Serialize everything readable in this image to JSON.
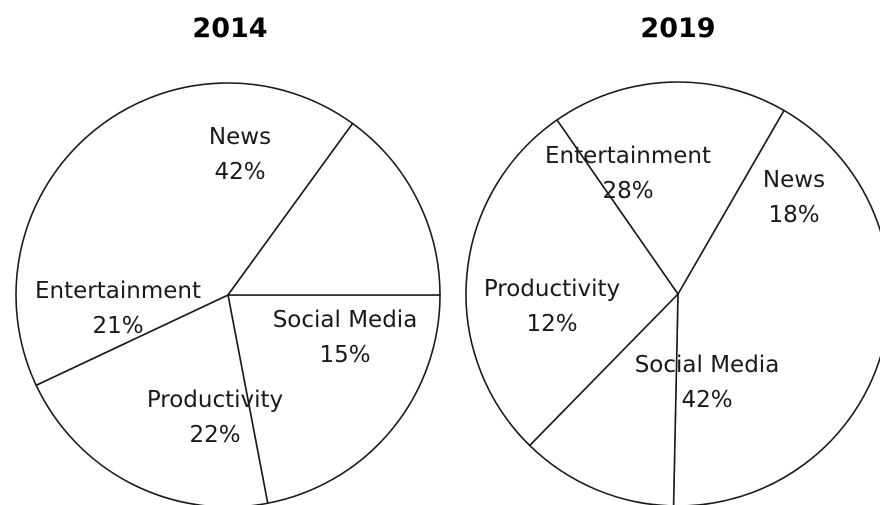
{
  "chart_data": [
    {
      "type": "pie",
      "title": "2014",
      "slices": [
        {
          "label": "Social Media",
          "value": 15,
          "value_label": "15%"
        },
        {
          "label": "News",
          "value": 42,
          "value_label": "42%"
        },
        {
          "label": "Entertainment",
          "value": 21,
          "value_label": "21%"
        },
        {
          "label": "Productivity",
          "value": 22,
          "value_label": "22%"
        }
      ]
    },
    {
      "type": "pie",
      "title": "2019",
      "slices": [
        {
          "label": "News",
          "value": 18,
          "value_label": "18%"
        },
        {
          "label": "Entertainment",
          "value": 28,
          "value_label": "28%"
        },
        {
          "label": "Productivity",
          "value": 12,
          "value_label": "12%"
        },
        {
          "label": "Social Media",
          "value": 42,
          "value_label": "42%"
        }
      ]
    }
  ]
}
